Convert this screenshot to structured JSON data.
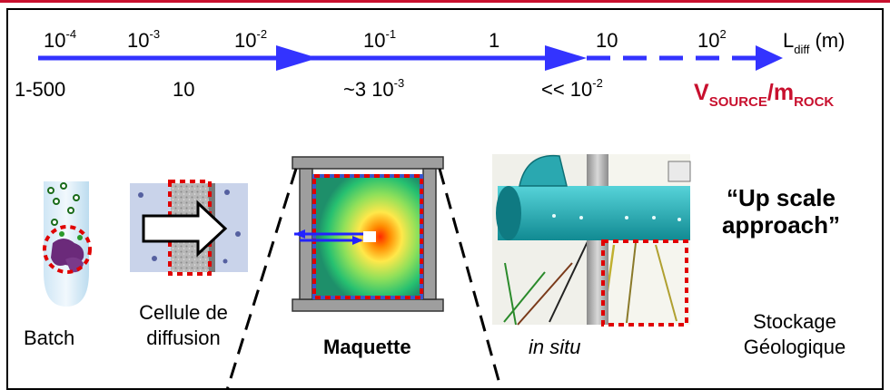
{
  "scale": {
    "ticks": [
      {
        "base": "10",
        "exp": "-4"
      },
      {
        "base": "10",
        "exp": "-3"
      },
      {
        "base": "10",
        "exp": "-2"
      },
      {
        "base": "10",
        "exp": "-1"
      },
      {
        "base": "1",
        "exp": ""
      },
      {
        "base": "10",
        "exp": ""
      },
      {
        "base": "10",
        "exp": "2"
      }
    ],
    "axis_label": {
      "main": "L",
      "sub": "diff",
      "unit": " (m)"
    },
    "ratios": [
      "1-500",
      "10",
      "~3 10",
      "<< 10"
    ],
    "ratio_exps": [
      "",
      "",
      "-3",
      "-2"
    ],
    "ratio_label": {
      "v": "V",
      "v_sub": "SOURCE",
      "slash": "/m",
      "m_sub": "ROCK"
    }
  },
  "stages": {
    "batch": "Batch",
    "cellule_line1": "Cellule de",
    "cellule_line2": "diffusion",
    "maquette": "Maquette",
    "insitu": "in situ",
    "stockage_line1": "Stockage",
    "stockage_line2": "Géologique"
  },
  "upscale": {
    "line1": "“Up scale",
    "line2": "approach”"
  },
  "colors": {
    "arrow": "#3333ff",
    "accent": "#c8102e",
    "pipe": "#20a8b0"
  }
}
